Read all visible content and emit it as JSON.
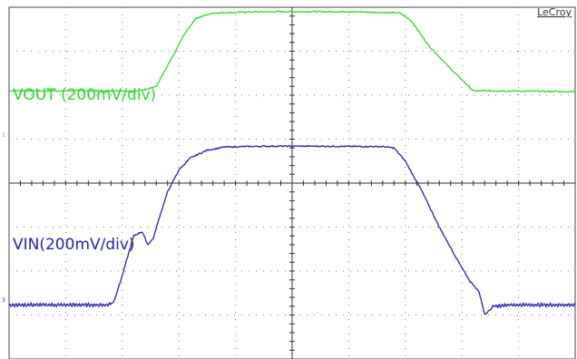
{
  "chart_data": {
    "type": "line",
    "brand": "LeCroy",
    "grid": true,
    "divisions": {
      "x": 10,
      "y": 8
    },
    "xlim": [
      0,
      10
    ],
    "ylim": [
      0,
      8
    ],
    "series": [
      {
        "name": "VOUT (200mV/div)",
        "color": "#33d633",
        "marker": "1",
        "x": [
          0,
          2.0,
          2.3,
          2.6,
          2.9,
          3.1,
          3.3,
          3.6,
          4.5,
          6.0,
          6.9,
          7.1,
          7.4,
          7.8,
          8.2,
          8.5,
          10
        ],
        "y": [
          6.1,
          6.1,
          6.1,
          6.2,
          6.9,
          7.4,
          7.75,
          7.87,
          7.9,
          7.9,
          7.87,
          7.7,
          7.15,
          6.6,
          6.1,
          6.1,
          6.08
        ]
      },
      {
        "name": "VIN(200mV/div)",
        "color": "#2424a8",
        "marker": "3",
        "x": [
          0,
          1.75,
          1.85,
          2.0,
          2.2,
          2.35,
          2.45,
          2.55,
          2.65,
          2.8,
          3.0,
          3.2,
          3.5,
          3.8,
          4.5,
          5.5,
          6.6,
          6.8,
          7.0,
          7.3,
          7.6,
          7.9,
          8.15,
          8.3,
          8.4,
          8.55,
          8.8,
          10
        ],
        "y": [
          1.23,
          1.23,
          1.3,
          1.9,
          2.8,
          2.9,
          2.6,
          2.75,
          3.2,
          3.8,
          4.3,
          4.57,
          4.75,
          4.82,
          4.84,
          4.84,
          4.83,
          4.8,
          4.5,
          3.8,
          3.0,
          2.3,
          1.75,
          1.55,
          1.0,
          1.2,
          1.23,
          1.23
        ]
      }
    ]
  }
}
